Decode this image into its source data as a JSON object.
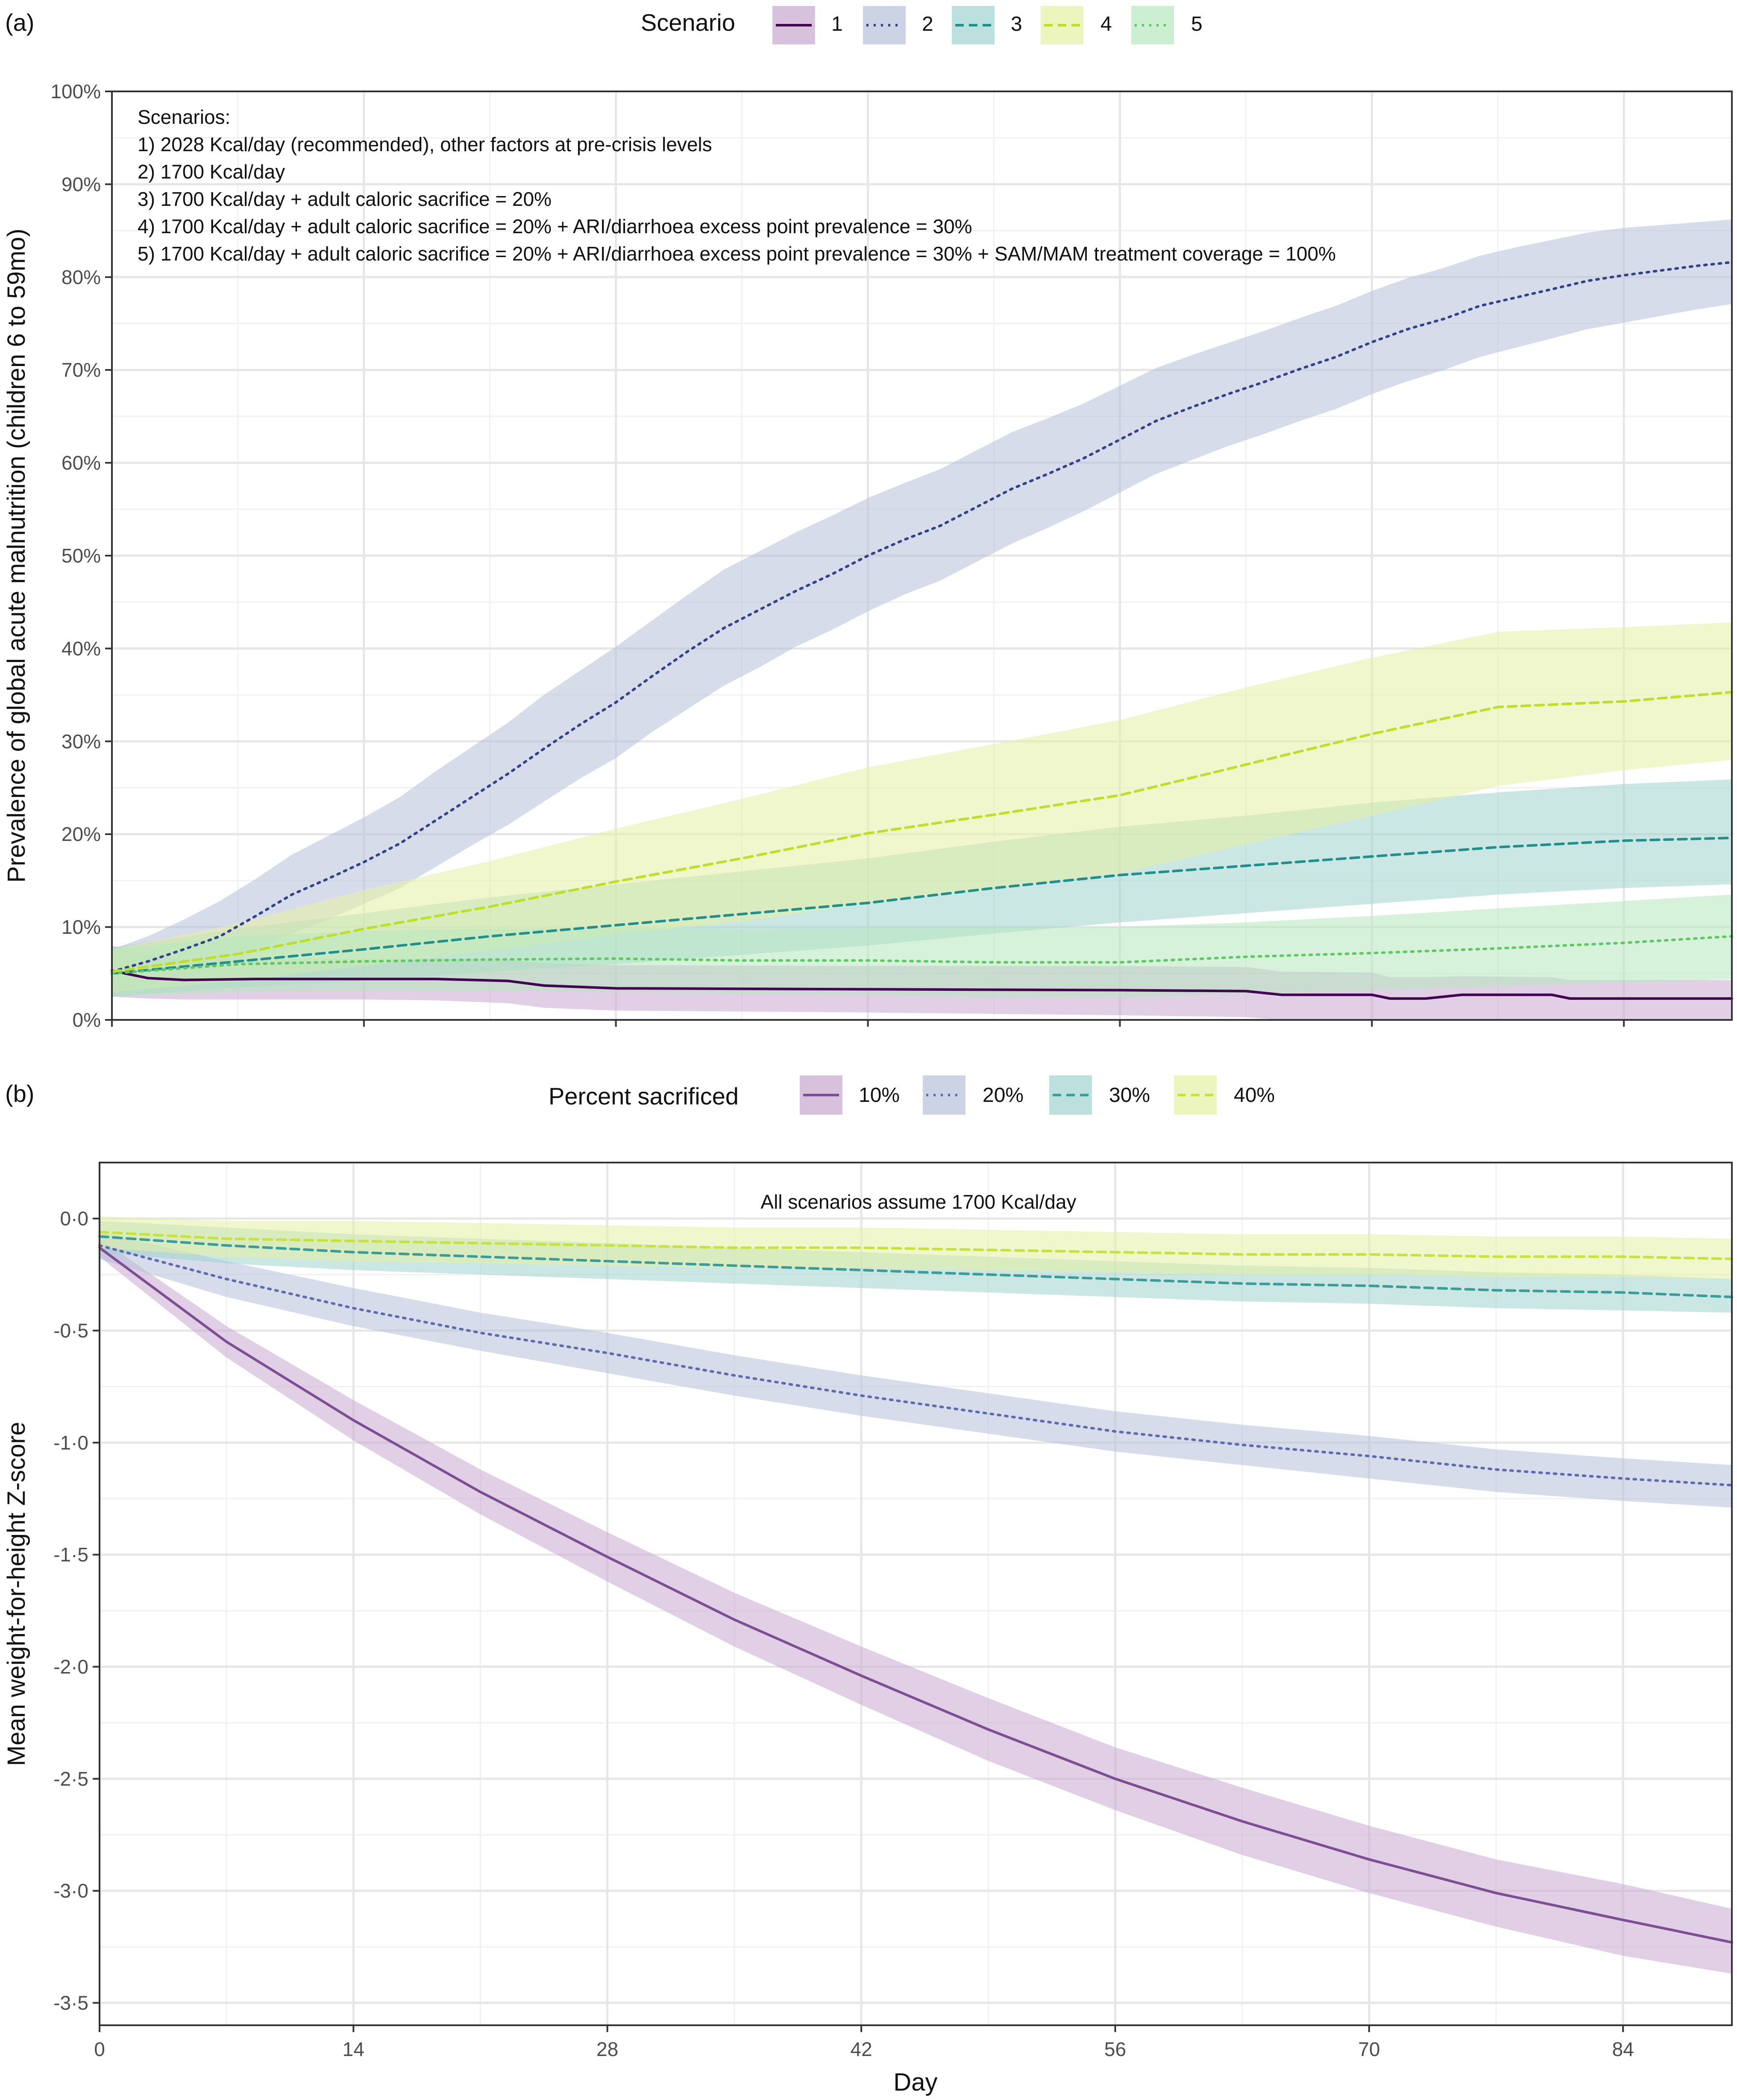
{
  "chart_data": [
    {
      "id": "a",
      "type": "line",
      "panel_label": "(a)",
      "title": "",
      "xlabel": "",
      "ylabel": "Prevalence of global acute malnutrition (children 6 to 59mo)",
      "xlim": [
        0,
        90
      ],
      "ylim": [
        0,
        100
      ],
      "x_ticks": [
        0,
        14,
        28,
        42,
        56,
        70,
        84
      ],
      "x_tick_labels_shown": false,
      "y_ticks": [
        0,
        10,
        20,
        30,
        40,
        50,
        60,
        70,
        80,
        90,
        100
      ],
      "y_tick_labels": [
        "0%",
        "10%",
        "20%",
        "30%",
        "40%",
        "50%",
        "60%",
        "70%",
        "80%",
        "90%",
        "100%"
      ],
      "grid": true,
      "legend": {
        "title": "Scenario",
        "position": "top",
        "entries": [
          "1",
          "2",
          "3",
          "4",
          "5"
        ]
      },
      "annotation": [
        "Scenarios:",
        "1) 2028 Kcal/day (recommended), other factors at pre-crisis levels",
        "2) 1700 Kcal/day",
        "3) 1700 Kcal/day + adult caloric sacrifice = 20%",
        "4) 1700 Kcal/day + adult caloric sacrifice = 20% + ARI/diarrhoea excess point prevalence = 30%",
        "5) 1700 Kcal/day + adult caloric sacrifice = 20% + ARI/diarrhoea excess point prevalence = 30% + SAM/MAM treatment coverage = 100%"
      ],
      "series": [
        {
          "name": "1",
          "color": "#440154",
          "dash": "solid",
          "x": [
            0,
            2,
            4,
            8,
            14,
            18,
            22,
            24,
            28,
            42,
            56,
            63,
            65,
            70,
            71,
            73,
            75,
            80,
            81,
            90
          ],
          "values": [
            5.3,
            4.5,
            4.3,
            4.4,
            4.4,
            4.4,
            4.2,
            3.7,
            3.4,
            3.3,
            3.2,
            3.1,
            2.7,
            2.7,
            2.3,
            2.3,
            2.7,
            2.7,
            2.3,
            2.3
          ],
          "lower": [
            2.5,
            2.3,
            2.2,
            2.2,
            2.2,
            2.1,
            1.8,
            1.3,
            1.0,
            0.8,
            0.5,
            0.3,
            0,
            0,
            0,
            0,
            0,
            0,
            0,
            0
          ],
          "upper": [
            8.0,
            7.0,
            6.5,
            6.6,
            6.6,
            6.6,
            6.5,
            6.1,
            5.9,
            5.8,
            5.8,
            5.7,
            5.2,
            5.1,
            4.6,
            4.6,
            4.7,
            4.6,
            4.3,
            4.3
          ]
        },
        {
          "name": "2",
          "color": "#31448b",
          "dash": "dotted",
          "x": [
            0,
            2,
            4,
            6,
            8,
            10,
            12,
            14,
            16,
            18,
            20,
            22,
            24,
            26,
            28,
            30,
            32,
            34,
            36,
            38,
            40,
            42,
            44,
            46,
            48,
            50,
            52,
            54,
            56,
            58,
            60,
            62,
            64,
            66,
            68,
            70,
            72,
            74,
            76,
            78,
            80,
            82,
            84,
            86,
            88,
            90
          ],
          "values": [
            5.2,
            6.3,
            7.6,
            9.0,
            11.2,
            13.5,
            15.2,
            17.0,
            19.0,
            21.5,
            24.0,
            26.5,
            29.2,
            31.8,
            34.2,
            37.0,
            39.7,
            42.2,
            44.2,
            46.2,
            48.0,
            50.0,
            51.7,
            53.2,
            55.2,
            57.2,
            58.8,
            60.5,
            62.5,
            64.5,
            66.0,
            67.4,
            68.7,
            70.1,
            71.4,
            73.0,
            74.4,
            75.5,
            76.9,
            77.8,
            78.7,
            79.6,
            80.2,
            80.7,
            81.2,
            81.6
          ],
          "lower": [
            3.0,
            3.8,
            4.6,
            5.6,
            7.5,
            9.3,
            10.8,
            12.5,
            14.2,
            16.5,
            18.8,
            21.0,
            23.5,
            26.0,
            28.2,
            31.0,
            33.5,
            36.0,
            38.0,
            40.2,
            42.0,
            44.0,
            45.8,
            47.3,
            49.3,
            51.3,
            53.0,
            54.8,
            56.8,
            58.8,
            60.3,
            61.8,
            63.1,
            64.5,
            65.8,
            67.4,
            68.8,
            70.0,
            71.4,
            72.4,
            73.4,
            74.4,
            75.1,
            75.8,
            76.5,
            77.1
          ],
          "upper": [
            7.6,
            9.0,
            10.8,
            12.8,
            15.2,
            17.8,
            19.8,
            21.8,
            24.0,
            26.8,
            29.4,
            32.0,
            35.0,
            37.6,
            40.2,
            43.0,
            45.8,
            48.5,
            50.5,
            52.5,
            54.3,
            56.2,
            57.8,
            59.3,
            61.3,
            63.3,
            64.8,
            66.4,
            68.3,
            70.2,
            71.6,
            72.9,
            74.2,
            75.6,
            76.9,
            78.5,
            79.9,
            81.0,
            82.3,
            83.2,
            84.0,
            84.8,
            85.3,
            85.6,
            85.9,
            86.2
          ]
        },
        {
          "name": "3",
          "color": "#21908d",
          "dash": "dashed",
          "x": [
            0,
            7,
            14,
            21,
            28,
            35,
            42,
            49,
            56,
            63,
            70,
            77,
            84,
            90
          ],
          "values": [
            5.0,
            6.3,
            7.6,
            9.0,
            10.2,
            11.4,
            12.6,
            14.2,
            15.6,
            16.6,
            17.6,
            18.6,
            19.3,
            19.6
          ],
          "lower": [
            2.5,
            3.5,
            4.2,
            5.2,
            6.0,
            7.0,
            8.0,
            9.3,
            10.5,
            11.5,
            12.5,
            13.5,
            14.2,
            14.6
          ],
          "upper": [
            7.8,
            9.8,
            11.5,
            13.2,
            14.6,
            16.0,
            17.4,
            19.2,
            20.8,
            22.0,
            23.4,
            24.5,
            25.4,
            25.9
          ]
        },
        {
          "name": "4",
          "color": "#bddf26",
          "dash": "dashed",
          "x": [
            0,
            7,
            14,
            21,
            28,
            35,
            42,
            49,
            56,
            63,
            70,
            77,
            84,
            90
          ],
          "values": [
            5.2,
            7.1,
            9.8,
            12.2,
            14.9,
            17.4,
            20.1,
            22.1,
            24.2,
            27.5,
            30.8,
            33.7,
            34.3,
            35.3
          ],
          "lower": [
            3.0,
            4.2,
            5.8,
            7.5,
            9.2,
            10.6,
            12.6,
            14.2,
            15.8,
            18.9,
            22.0,
            25.2,
            26.9,
            28.0
          ],
          "upper": [
            7.6,
            10.4,
            14.0,
            17.1,
            20.6,
            23.8,
            27.2,
            29.7,
            32.3,
            35.8,
            39.0,
            41.8,
            42.3,
            42.8
          ]
        },
        {
          "name": "5",
          "color": "#5ec962",
          "dash": "dotted",
          "x": [
            0,
            7,
            14,
            21,
            28,
            35,
            42,
            49,
            56,
            63,
            70,
            77,
            84,
            90
          ],
          "values": [
            5.0,
            6.0,
            6.3,
            6.5,
            6.6,
            6.4,
            6.4,
            6.2,
            6.2,
            6.8,
            7.2,
            7.7,
            8.3,
            9.0
          ],
          "lower": [
            2.6,
            3.0,
            3.1,
            3.1,
            3.0,
            2.8,
            2.7,
            2.4,
            2.4,
            2.8,
            3.2,
            3.6,
            4.0,
            4.4
          ],
          "upper": [
            7.6,
            9.0,
            9.6,
            9.8,
            9.9,
            9.8,
            9.9,
            9.9,
            10.0,
            10.5,
            11.2,
            12.0,
            12.8,
            13.5
          ]
        }
      ]
    },
    {
      "id": "b",
      "type": "line",
      "panel_label": "(b)",
      "title": "",
      "xlabel": "Day",
      "ylabel": "Mean weight-for-height Z-score",
      "xlim": [
        0,
        90
      ],
      "ylim": [
        -3.6,
        0.25
      ],
      "x_ticks": [
        0,
        14,
        28,
        42,
        56,
        70,
        84
      ],
      "x_tick_labels": [
        "0",
        "14",
        "28",
        "42",
        "56",
        "70",
        "84"
      ],
      "y_ticks": [
        0,
        -0.5,
        -1,
        -1.5,
        -2,
        -2.5,
        -3,
        -3.5
      ],
      "y_tick_labels": [
        "0·0",
        "-0·5",
        "-1·0",
        "-1·5",
        "-2·0",
        "-2·5",
        "-3·0",
        "-3·5"
      ],
      "grid": true,
      "legend": {
        "title": "Percent sacrificed",
        "position": "top",
        "entries": [
          "10%",
          "20%",
          "30%",
          "40%"
        ]
      },
      "annotation": [
        "All scenarios assume 1700 Kcal/day"
      ],
      "series": [
        {
          "name": "10%",
          "color": "#7d4e94",
          "dash": "solid",
          "x": [
            0,
            7,
            14,
            21,
            28,
            35,
            42,
            49,
            56,
            63,
            70,
            77,
            84,
            90
          ],
          "values": [
            -0.13,
            -0.55,
            -0.9,
            -1.22,
            -1.51,
            -1.79,
            -2.04,
            -2.28,
            -2.5,
            -2.69,
            -2.86,
            -3.01,
            -3.13,
            -3.23
          ],
          "lower": [
            -0.17,
            -0.62,
            -0.99,
            -1.32,
            -1.62,
            -1.91,
            -2.17,
            -2.42,
            -2.64,
            -2.84,
            -3.01,
            -3.16,
            -3.29,
            -3.37
          ],
          "upper": [
            -0.09,
            -0.48,
            -0.81,
            -1.12,
            -1.4,
            -1.67,
            -1.91,
            -2.14,
            -2.36,
            -2.54,
            -2.71,
            -2.86,
            -2.97,
            -3.08
          ]
        },
        {
          "name": "20%",
          "color": "#5d6bb0",
          "dash": "dotted",
          "x": [
            0,
            7,
            14,
            21,
            28,
            35,
            42,
            49,
            56,
            63,
            70,
            77,
            84,
            90
          ],
          "values": [
            -0.12,
            -0.27,
            -0.4,
            -0.51,
            -0.6,
            -0.7,
            -0.79,
            -0.87,
            -0.95,
            -1.01,
            -1.06,
            -1.12,
            -1.16,
            -1.19
          ],
          "lower": [
            -0.18,
            -0.35,
            -0.48,
            -0.59,
            -0.69,
            -0.79,
            -0.88,
            -0.96,
            -1.04,
            -1.1,
            -1.16,
            -1.22,
            -1.26,
            -1.29
          ],
          "upper": [
            -0.06,
            -0.19,
            -0.31,
            -0.42,
            -0.51,
            -0.61,
            -0.7,
            -0.78,
            -0.86,
            -0.92,
            -0.97,
            -1.03,
            -1.07,
            -1.1
          ]
        },
        {
          "name": "30%",
          "color": "#3c9c99",
          "dash": "dashed",
          "x": [
            0,
            7,
            14,
            21,
            28,
            35,
            42,
            49,
            56,
            63,
            70,
            77,
            84,
            90
          ],
          "values": [
            -0.08,
            -0.12,
            -0.15,
            -0.17,
            -0.19,
            -0.21,
            -0.23,
            -0.25,
            -0.27,
            -0.29,
            -0.3,
            -0.32,
            -0.33,
            -0.35
          ],
          "lower": [
            -0.15,
            -0.2,
            -0.23,
            -0.25,
            -0.27,
            -0.29,
            -0.31,
            -0.33,
            -0.35,
            -0.37,
            -0.38,
            -0.4,
            -0.41,
            -0.42
          ],
          "upper": [
            -0.01,
            -0.04,
            -0.07,
            -0.09,
            -0.11,
            -0.13,
            -0.15,
            -0.17,
            -0.19,
            -0.21,
            -0.22,
            -0.24,
            -0.25,
            -0.27
          ]
        },
        {
          "name": "40%",
          "color": "#c7e33a",
          "dash": "dashed",
          "x": [
            0,
            7,
            14,
            21,
            28,
            35,
            42,
            49,
            56,
            63,
            70,
            77,
            84,
            90
          ],
          "values": [
            -0.06,
            -0.09,
            -0.1,
            -0.11,
            -0.12,
            -0.13,
            -0.13,
            -0.14,
            -0.15,
            -0.16,
            -0.16,
            -0.17,
            -0.17,
            -0.18
          ],
          "lower": [
            -0.13,
            -0.17,
            -0.19,
            -0.2,
            -0.21,
            -0.22,
            -0.22,
            -0.23,
            -0.24,
            -0.25,
            -0.25,
            -0.26,
            -0.26,
            -0.27
          ],
          "upper": [
            0.01,
            -0.01,
            -0.01,
            -0.02,
            -0.03,
            -0.04,
            -0.04,
            -0.05,
            -0.06,
            -0.07,
            -0.07,
            -0.08,
            -0.08,
            -0.09
          ]
        }
      ]
    }
  ],
  "colors": {
    "panel_a_fills": [
      "#c6a7cf",
      "#b7c0da",
      "#9fd3ce",
      "#e6f1a2",
      "#b7e7bd"
    ],
    "panel_b_fills": [
      "#c6a7cf",
      "#b7c0da",
      "#9fd3ce",
      "#e6f1a2"
    ],
    "gridline": "#e6e6e6",
    "frame": "#333333"
  }
}
